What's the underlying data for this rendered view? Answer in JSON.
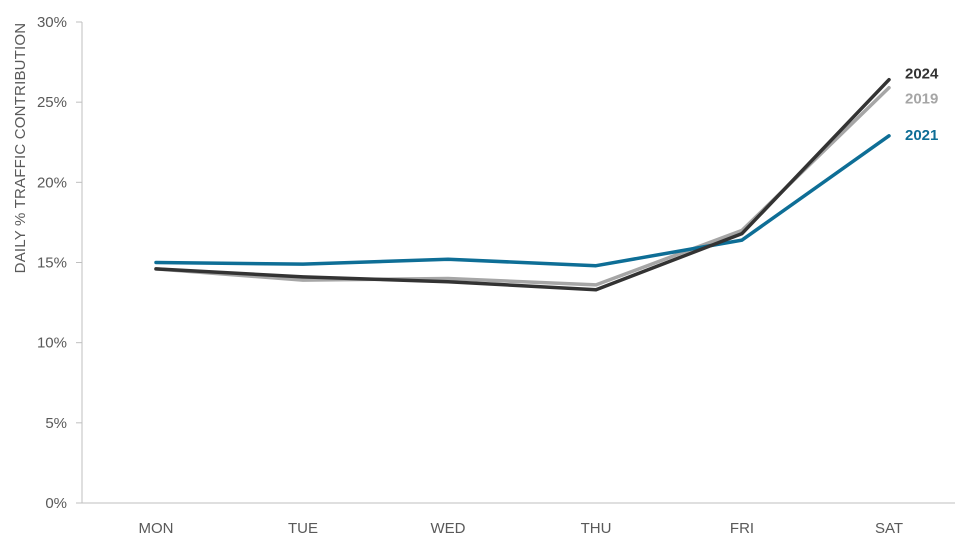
{
  "chart_data": {
    "type": "line",
    "categories": [
      "MON",
      "TUE",
      "WED",
      "THU",
      "FRI",
      "SAT"
    ],
    "ylabel": "DAILY % TRAFFIC CONTRIBUTION",
    "ylim": [
      0,
      30
    ],
    "yticks": [
      0,
      5,
      10,
      15,
      20,
      25,
      30
    ],
    "ytick_labels": [
      "0%",
      "5%",
      "10%",
      "15%",
      "20%",
      "25%",
      "30%"
    ],
    "grid": false,
    "legend": "end-of-line labels",
    "series": [
      {
        "name": "2019",
        "color": "#a6a6a6",
        "values": [
          14.6,
          13.9,
          14.0,
          13.6,
          17.0,
          25.9
        ]
      },
      {
        "name": "2021",
        "color": "#0e6e96",
        "values": [
          15.0,
          14.9,
          15.2,
          14.8,
          16.4,
          22.9
        ]
      },
      {
        "name": "2024",
        "color": "#333333",
        "values": [
          14.6,
          14.1,
          13.8,
          13.3,
          16.8,
          26.4
        ]
      }
    ]
  }
}
